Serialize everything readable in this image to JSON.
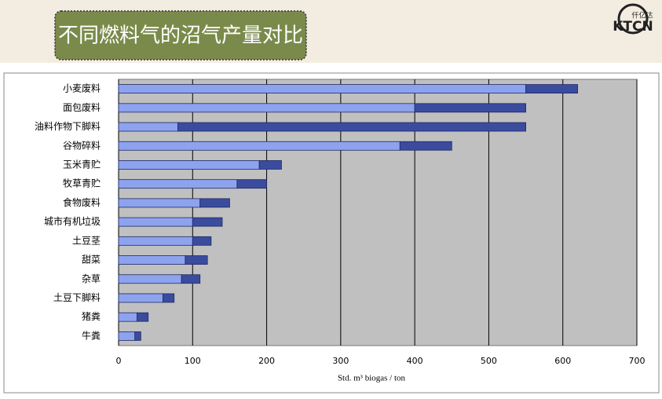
{
  "header": {
    "logo_sub": "仟亿达",
    "logo_text": "KTCN"
  },
  "chart_data": {
    "type": "bar",
    "orientation": "horizontal",
    "stacked": true,
    "title": "不同燃料气的沼气产量对比",
    "xlabel": "Std. m³ biogas / ton",
    "categories": [
      "小麦废料",
      "面包废料",
      "油料作物下脚料",
      "谷物碎料",
      "玉米青贮",
      "牧草青贮",
      "食物废料",
      "城市有机垃圾",
      "土豆茎",
      "甜菜",
      "杂草",
      "土豆下脚料",
      "猪粪",
      "牛粪"
    ],
    "series": [
      {
        "color": "#8ea3ee",
        "values": [
          550,
          400,
          80,
          380,
          190,
          160,
          110,
          100,
          100,
          90,
          85,
          60,
          25,
          22
        ]
      },
      {
        "color": "#3b4b9e",
        "values": [
          70,
          150,
          470,
          70,
          30,
          40,
          40,
          40,
          25,
          30,
          25,
          15,
          15,
          8
        ]
      }
    ],
    "xlim": [
      0,
      700
    ],
    "xticks": [
      0,
      100,
      200,
      300,
      400,
      500,
      600,
      700
    ],
    "grid": true
  }
}
